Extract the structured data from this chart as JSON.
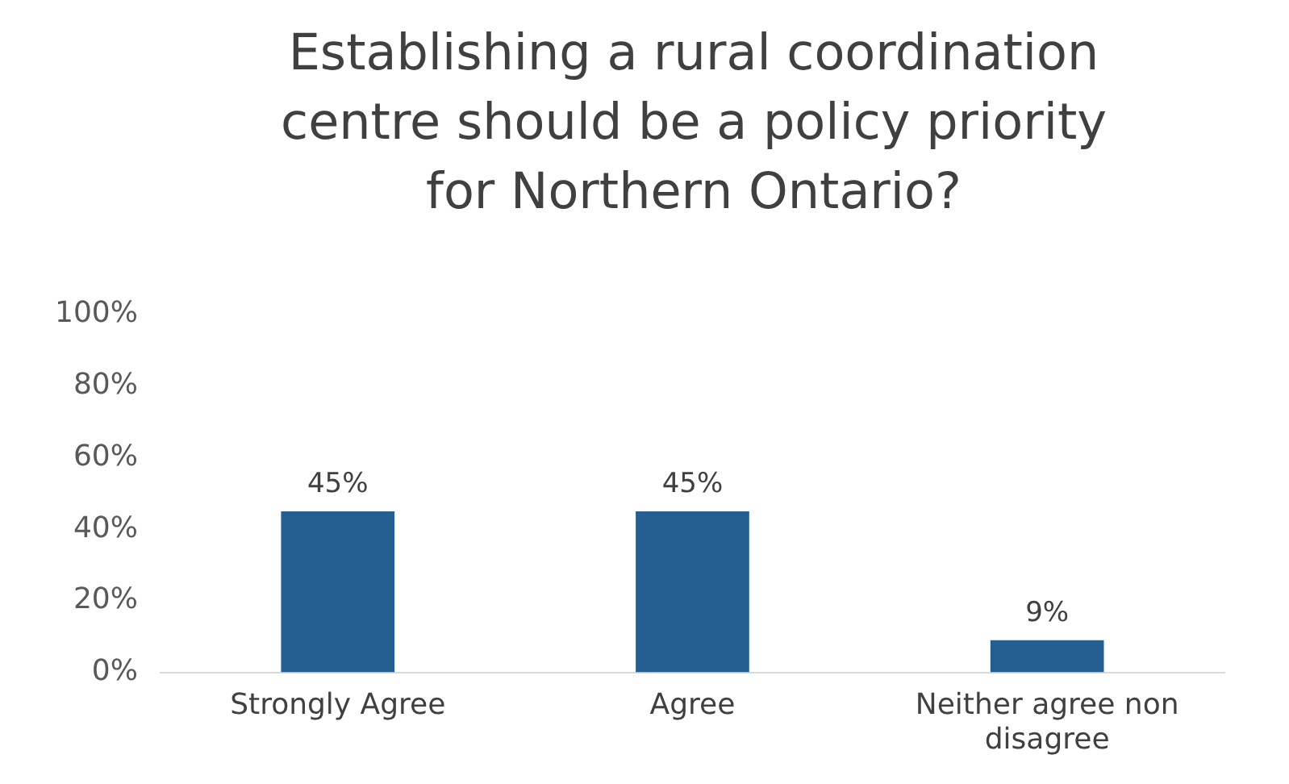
{
  "chart_data": {
    "type": "bar",
    "title": "Establishing a rural coordination centre should be a policy priority for Northern Ontario?",
    "categories": [
      "Strongly Agree",
      "Agree",
      "Neither agree non disagree"
    ],
    "values": [
      45,
      45,
      9
    ],
    "value_labels": [
      "45%",
      "45%",
      "9%"
    ],
    "color": "#255e91",
    "ylim": [
      0,
      100
    ],
    "yticks": [
      {
        "value": 0,
        "label": "0%"
      },
      {
        "value": 20,
        "label": "20%"
      },
      {
        "value": 40,
        "label": "40%"
      },
      {
        "value": 60,
        "label": "60%"
      },
      {
        "value": 80,
        "label": "80%"
      },
      {
        "value": 100,
        "label": "100%"
      }
    ],
    "grid": false,
    "legend": false
  }
}
